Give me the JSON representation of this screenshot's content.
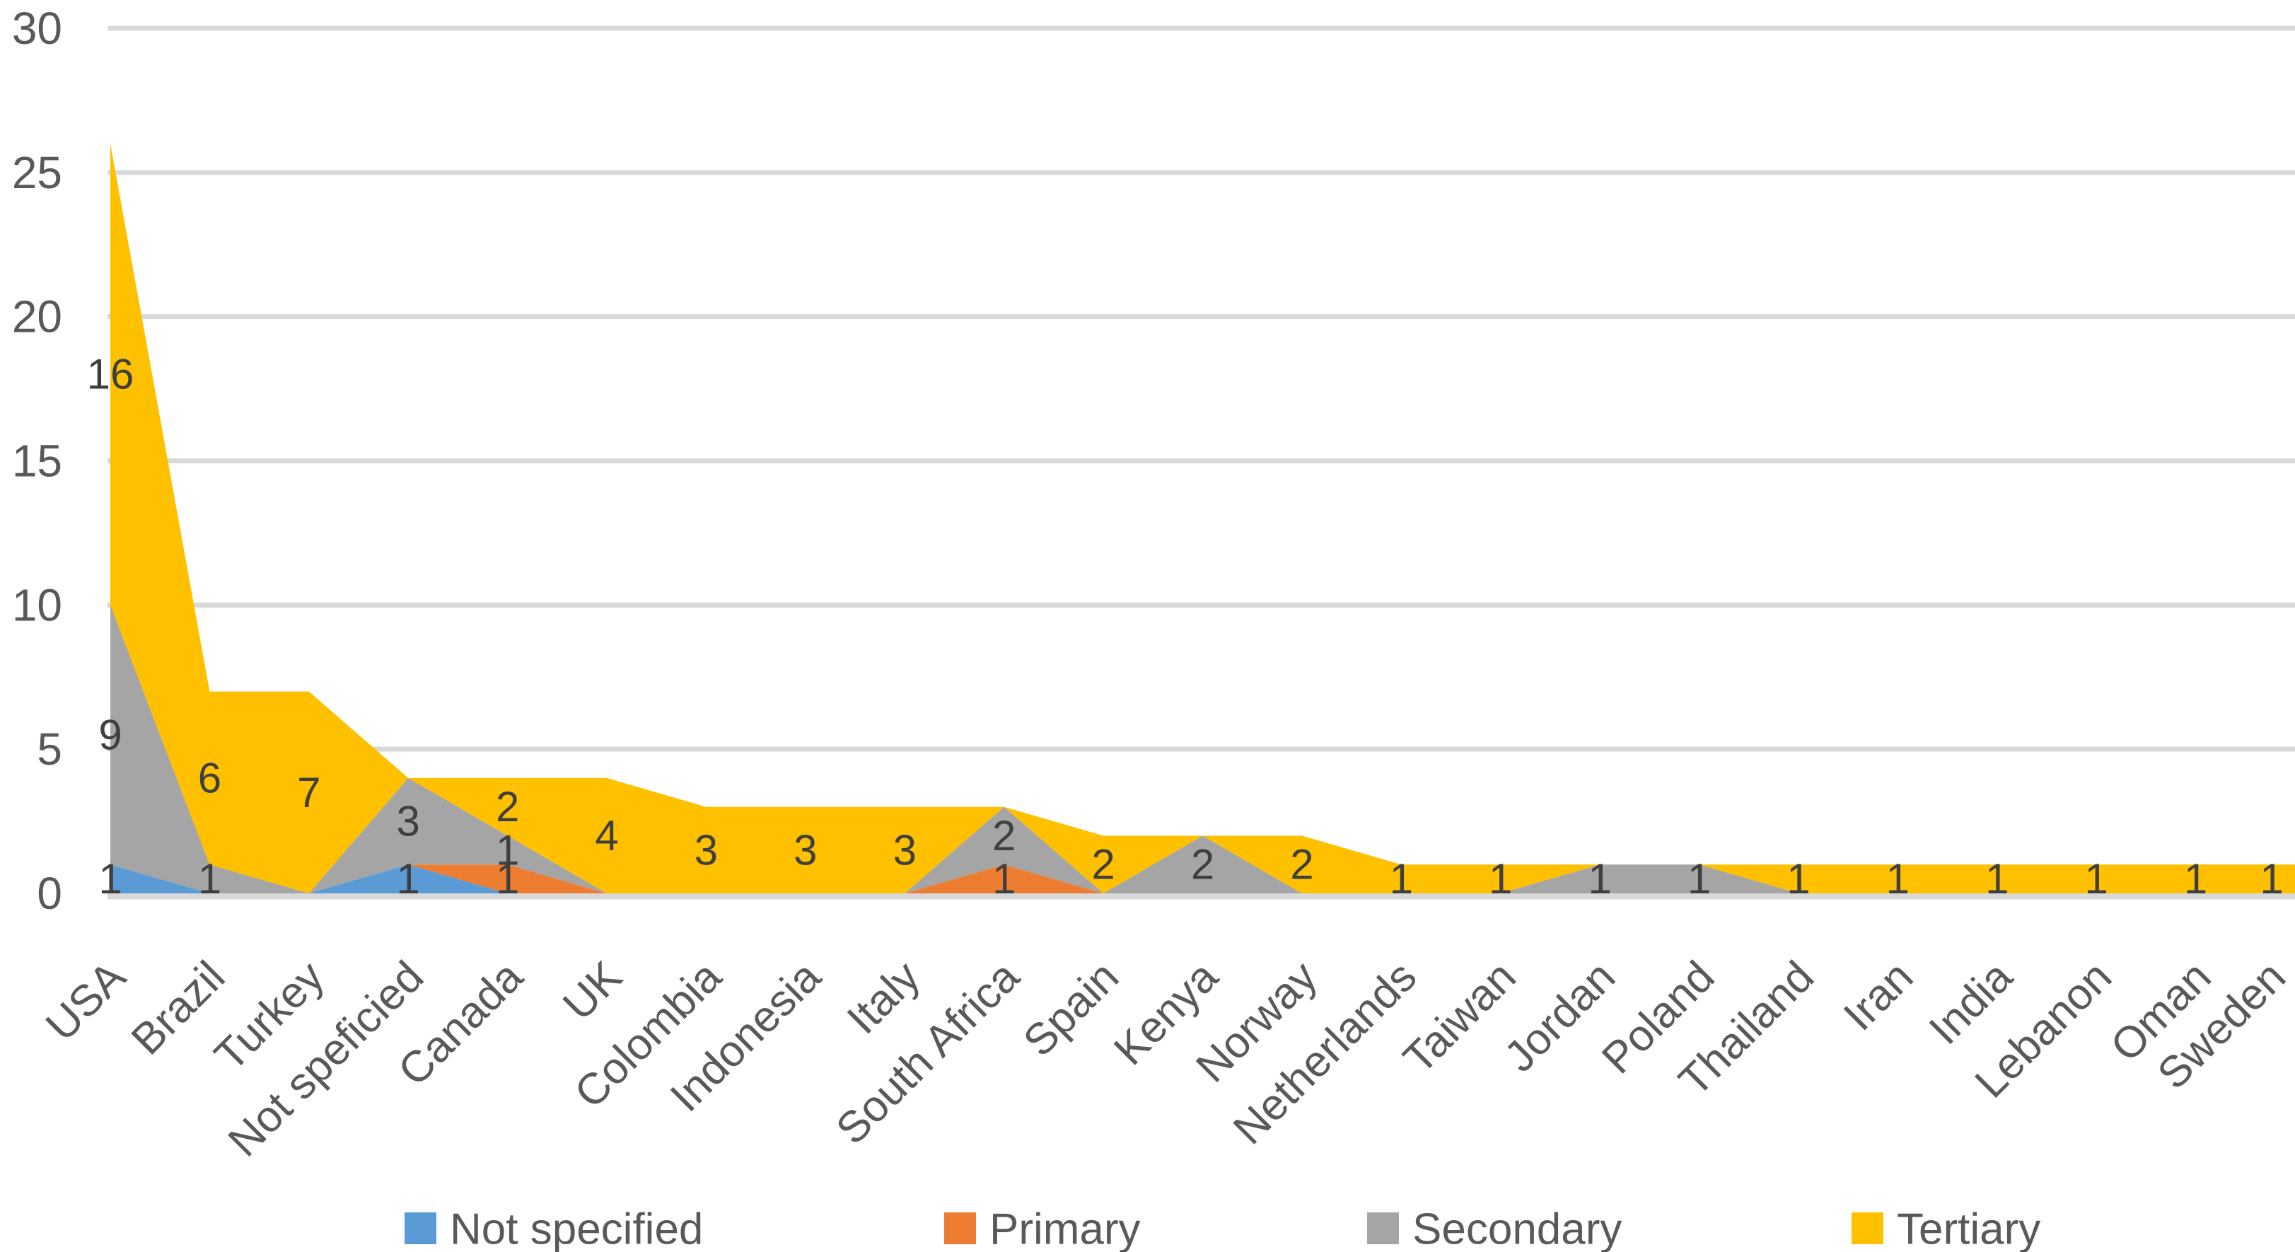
{
  "chart_data": {
    "type": "area",
    "stacked": true,
    "background": "#FFFFFF",
    "categories": [
      "USA",
      "Brazil",
      "Turkey",
      "Not speficied",
      "Canada",
      "UK",
      "Colombia",
      "Indonesia",
      "Italy",
      "South Africa",
      "Spain",
      "Kenya",
      "Norway",
      "Netherlands",
      "Taiwan",
      "Jordan",
      "Poland",
      "Thailand",
      "Iran",
      "India",
      "Lebanon",
      "Oman",
      "Sweden"
    ],
    "series": [
      {
        "name": "Not specified",
        "color": "#5B9BD5",
        "values": [
          1,
          0,
          0,
          1,
          0,
          0,
          0,
          0,
          0,
          0,
          0,
          0,
          0,
          0,
          0,
          0,
          0,
          0,
          0,
          0,
          0,
          0,
          0
        ]
      },
      {
        "name": "Primary",
        "color": "#ED7D31",
        "values": [
          0,
          0,
          0,
          0,
          1,
          0,
          0,
          0,
          0,
          1,
          0,
          0,
          0,
          0,
          0,
          0,
          0,
          0,
          0,
          0,
          0,
          0,
          0
        ]
      },
      {
        "name": "Secondary",
        "color": "#A5A5A5",
        "values": [
          9,
          1,
          0,
          3,
          1,
          0,
          0,
          0,
          0,
          2,
          0,
          2,
          0,
          0,
          0,
          1,
          1,
          0,
          0,
          0,
          0,
          0,
          0
        ]
      },
      {
        "name": "Tertiary",
        "color": "#FFC000",
        "values": [
          16,
          6,
          7,
          0,
          2,
          4,
          3,
          3,
          3,
          0,
          2,
          0,
          2,
          1,
          1,
          0,
          0,
          1,
          1,
          1,
          1,
          1,
          1
        ]
      }
    ],
    "totals_note": "stack order bottom-to-top: Not specified, Primary, Secondary, Tertiary",
    "y_axis": {
      "min": 0,
      "max": 30,
      "step": 5,
      "tick_labels": [
        "0",
        "5",
        "10",
        "15",
        "20",
        "25",
        "30"
      ]
    },
    "x_axis": {
      "label_rotation_deg": -45
    },
    "data_labels": {
      "show": true,
      "rule": "values greater than 0, centered in band"
    },
    "legend": {
      "position": "bottom",
      "labels": [
        "Not specified",
        "Primary",
        "Secondary",
        "Tertiary"
      ]
    },
    "grid": true,
    "style": {
      "gridline_color": "#D9D9D9",
      "axis_text_color": "#595959",
      "data_label_color": "#3F3F3F",
      "legend_text_color": "#595959"
    }
  }
}
